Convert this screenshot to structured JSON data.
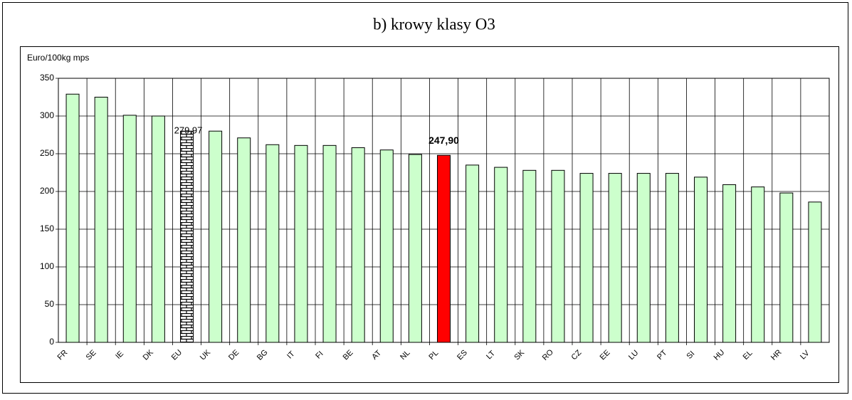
{
  "chart_data": {
    "type": "bar",
    "title": "b) krowy klasy O3",
    "y_label": "Euro/100kg mps",
    "categories": [
      "FR",
      "SE",
      "IE",
      "DK",
      "EU",
      "UK",
      "DE",
      "BG",
      "IT",
      "FI",
      "BE",
      "AT",
      "NL",
      "PL",
      "ES",
      "LT",
      "SK",
      "RO",
      "CZ",
      "EE",
      "LU",
      "PT",
      "SI",
      "HU",
      "EL",
      "HR",
      "LV"
    ],
    "values": [
      329,
      325,
      301,
      300,
      279.97,
      280,
      271,
      262,
      261,
      261,
      258,
      255,
      249,
      247.9,
      235,
      232,
      228,
      228,
      224,
      224,
      224,
      224,
      219,
      209,
      206,
      198,
      186
    ],
    "value_labels": [
      null,
      null,
      null,
      null,
      "279,97",
      null,
      null,
      null,
      null,
      null,
      null,
      null,
      null,
      "247,90",
      null,
      null,
      null,
      null,
      null,
      null,
      null,
      null,
      null,
      null,
      null,
      null,
      null
    ],
    "colors": [
      "#ccffcc",
      "#ccffcc",
      "#ccffcc",
      "#ccffcc",
      "brick",
      "#ccffcc",
      "#ccffcc",
      "#ccffcc",
      "#ccffcc",
      "#ccffcc",
      "#ccffcc",
      "#ccffcc",
      "#ccffcc",
      "#ff0000",
      "#ccffcc",
      "#ccffcc",
      "#ccffcc",
      "#ccffcc",
      "#ccffcc",
      "#ccffcc",
      "#ccffcc",
      "#ccffcc",
      "#ccffcc",
      "#ccffcc",
      "#ccffcc",
      "#ccffcc",
      "#ccffcc"
    ],
    "ylim": [
      0,
      350
    ],
    "yticks": [
      0,
      50,
      100,
      150,
      200,
      250,
      300,
      350
    ],
    "grid": true
  }
}
